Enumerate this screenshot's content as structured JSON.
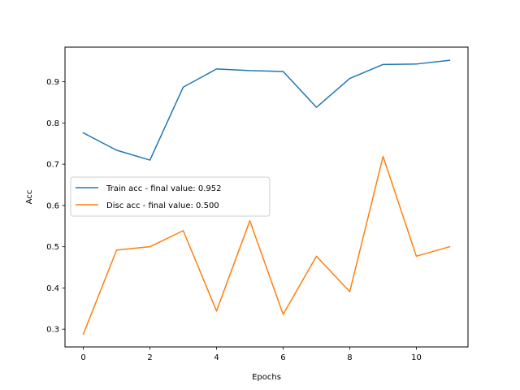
{
  "chart_data": {
    "type": "line",
    "title": "",
    "xlabel": "Epochs",
    "ylabel": "Acc",
    "xlim": [
      -0.55,
      11.55
    ],
    "ylim": [
      0.257,
      0.984
    ],
    "xticks": [
      0,
      2,
      4,
      6,
      8,
      10
    ],
    "yticks": [
      0.3,
      0.4,
      0.5,
      0.6,
      0.7,
      0.8,
      0.9
    ],
    "ytick_labels": [
      "0.3",
      "0.4",
      "0.5",
      "0.6",
      "0.7",
      "0.8",
      "0.9"
    ],
    "grid": false,
    "legend_position": "center-left",
    "x": [
      0,
      1,
      2,
      3,
      4,
      5,
      6,
      7,
      8,
      9,
      10,
      11
    ],
    "series": [
      {
        "name": "Train acc - final value: 0.952",
        "color": "#1f77b4",
        "values": [
          0.776,
          0.734,
          0.71,
          0.887,
          0.931,
          0.927,
          0.925,
          0.838,
          0.908,
          0.942,
          0.943,
          0.952
        ]
      },
      {
        "name": "Disc acc - final value: 0.500",
        "color": "#ff7f0e",
        "values": [
          0.288,
          0.492,
          0.5,
          0.539,
          0.344,
          0.563,
          0.336,
          0.477,
          0.391,
          0.719,
          0.477,
          0.5
        ]
      }
    ]
  }
}
